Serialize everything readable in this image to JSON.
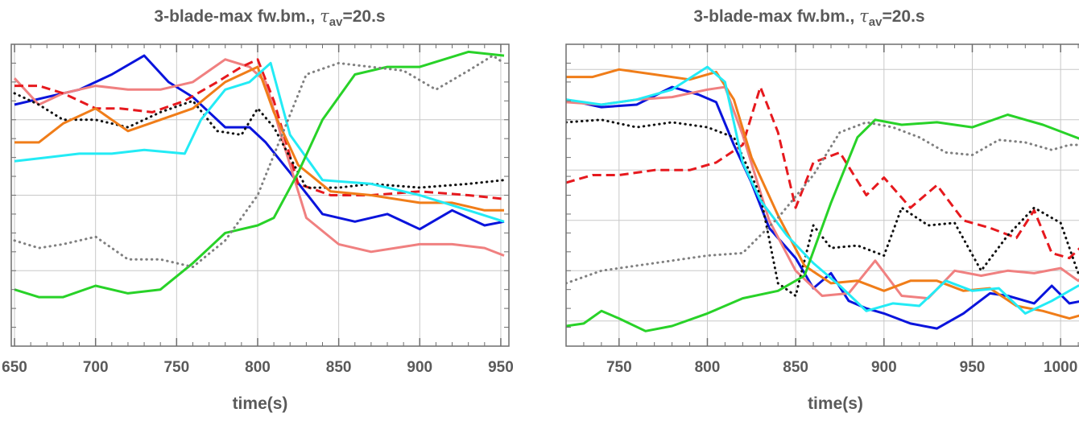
{
  "colors": {
    "blue": "#0a14dc",
    "pink": "#f08080",
    "red": "#e6191e",
    "black": "#111111",
    "orange": "#f07d19",
    "cyan": "#23ebf5",
    "green": "#28d228",
    "gray": "#808080",
    "grid": "#c8c8c8",
    "frame": "#6e6e6e",
    "text": "#5a5a5a"
  },
  "chart_data": [
    {
      "type": "line",
      "title_prefix": "3-blade-max fw.bm., ",
      "title_symbol": "τ",
      "title_sub": "av",
      "title_suffix": "=20.s",
      "xlabel": "time(s)",
      "ylabel": "",
      "xlim": [
        648,
        955
      ],
      "ylim": [
        0,
        8
      ],
      "xticks": [
        650,
        700,
        750,
        800,
        850,
        900,
        950
      ],
      "xtick_labels": [
        "650",
        "700",
        "750",
        "800",
        "850",
        "900",
        "950"
      ],
      "ygrid": [
        2,
        4,
        6,
        8
      ],
      "grid": true,
      "series": [
        {
          "color": "blue",
          "style": "solid",
          "x": [
            650,
            670,
            690,
            710,
            730,
            745,
            760,
            780,
            795,
            805,
            820,
            840,
            860,
            880,
            900,
            920,
            940,
            952
          ],
          "y": [
            6.4,
            6.6,
            6.8,
            7.2,
            7.7,
            7.0,
            6.6,
            5.8,
            5.8,
            5.4,
            4.6,
            3.5,
            3.3,
            3.5,
            3.1,
            3.6,
            3.2,
            3.3
          ]
        },
        {
          "color": "pink",
          "style": "solid",
          "x": [
            650,
            665,
            680,
            700,
            720,
            740,
            760,
            780,
            795,
            805,
            815,
            830,
            850,
            870,
            900,
            920,
            940,
            952
          ],
          "y": [
            7.1,
            6.4,
            6.7,
            6.9,
            6.8,
            6.8,
            7.0,
            7.6,
            7.4,
            7.0,
            5.5,
            3.4,
            2.7,
            2.5,
            2.7,
            2.7,
            2.6,
            2.4
          ]
        },
        {
          "color": "red",
          "style": "dash",
          "x": [
            650,
            665,
            680,
            700,
            715,
            735,
            755,
            775,
            790,
            800,
            810,
            825,
            845,
            870,
            900,
            930,
            952
          ],
          "y": [
            6.9,
            6.9,
            6.7,
            6.3,
            6.3,
            6.2,
            6.5,
            7.0,
            7.4,
            7.6,
            6.5,
            4.3,
            4.0,
            4.0,
            4.1,
            4.0,
            3.9
          ]
        },
        {
          "color": "black",
          "style": "dot",
          "x": [
            650,
            665,
            680,
            700,
            720,
            740,
            760,
            775,
            790,
            800,
            810,
            830,
            850,
            870,
            900,
            930,
            952
          ],
          "y": [
            6.7,
            6.4,
            6.0,
            6.0,
            5.8,
            6.2,
            6.5,
            5.7,
            5.6,
            6.3,
            5.8,
            4.2,
            4.2,
            4.3,
            4.2,
            4.3,
            4.4
          ]
        },
        {
          "color": "orange",
          "style": "solid",
          "x": [
            650,
            665,
            680,
            700,
            720,
            740,
            760,
            780,
            800,
            810,
            825,
            845,
            870,
            900,
            920,
            940,
            952
          ],
          "y": [
            5.4,
            5.4,
            5.9,
            6.3,
            5.7,
            6.0,
            6.3,
            7.0,
            7.4,
            6.2,
            4.8,
            4.1,
            4.0,
            3.8,
            3.8,
            3.6,
            3.6
          ]
        },
        {
          "color": "cyan",
          "style": "solid",
          "x": [
            650,
            670,
            690,
            710,
            730,
            755,
            765,
            780,
            795,
            808,
            820,
            840,
            870,
            900,
            930,
            952
          ],
          "y": [
            4.9,
            5.0,
            5.1,
            5.1,
            5.2,
            5.1,
            6.0,
            6.8,
            7.0,
            7.5,
            5.6,
            4.4,
            4.3,
            4.0,
            3.6,
            3.3
          ]
        },
        {
          "color": "green",
          "style": "solid",
          "x": [
            650,
            665,
            680,
            700,
            720,
            740,
            760,
            780,
            800,
            810,
            825,
            840,
            860,
            880,
            900,
            930,
            952
          ],
          "y": [
            1.5,
            1.3,
            1.3,
            1.6,
            1.4,
            1.5,
            2.2,
            3.0,
            3.2,
            3.4,
            4.6,
            6.0,
            7.2,
            7.4,
            7.4,
            7.8,
            7.7
          ]
        },
        {
          "color": "gray",
          "style": "dot",
          "x": [
            650,
            665,
            680,
            700,
            720,
            740,
            760,
            780,
            800,
            815,
            830,
            850,
            870,
            890,
            910,
            930,
            945,
            952
          ],
          "y": [
            2.8,
            2.6,
            2.7,
            2.9,
            2.3,
            2.3,
            2.1,
            2.8,
            4.0,
            5.6,
            7.2,
            7.5,
            7.4,
            7.3,
            6.8,
            7.3,
            7.7,
            7.5
          ]
        }
      ]
    },
    {
      "type": "line",
      "title_prefix": "3-blade-max fw.bm., ",
      "title_symbol": "τ",
      "title_sub": "av",
      "title_suffix": "=20.s",
      "xlabel": "time(s)",
      "ylabel": "",
      "xlim": [
        720,
        1025
      ],
      "ylim": [
        0,
        12
      ],
      "xticks": [
        750,
        800,
        850,
        900,
        950,
        1000
      ],
      "xtick_labels": [
        "750",
        "800",
        "850",
        "900",
        "950",
        "1000"
      ],
      "ygrid": [
        1,
        3,
        5,
        7,
        9,
        11
      ],
      "grid": true,
      "series": [
        {
          "color": "blue",
          "style": "solid",
          "x": [
            720,
            740,
            760,
            780,
            795,
            805,
            815,
            825,
            835,
            850,
            860,
            870,
            880,
            890,
            900,
            915,
            930,
            945,
            960,
            970,
            985,
            995,
            1005,
            1020
          ],
          "y": [
            9.8,
            9.5,
            9.6,
            10.3,
            10.0,
            9.7,
            8.0,
            6.5,
            4.7,
            3.5,
            2.3,
            2.9,
            1.8,
            1.5,
            1.3,
            0.9,
            0.7,
            1.3,
            2.1,
            2.0,
            1.7,
            2.4,
            1.7,
            1.9
          ]
        },
        {
          "color": "pink",
          "style": "solid",
          "x": [
            720,
            740,
            760,
            780,
            800,
            810,
            820,
            835,
            850,
            865,
            880,
            895,
            910,
            925,
            940,
            955,
            970,
            985,
            1000,
            1010,
            1020
          ],
          "y": [
            9.7,
            9.6,
            9.8,
            9.9,
            10.2,
            10.3,
            8.4,
            5.0,
            3.0,
            2.0,
            2.1,
            3.4,
            2.0,
            1.9,
            3.0,
            2.8,
            3.0,
            2.9,
            3.1,
            2.6,
            3.3
          ]
        },
        {
          "color": "red",
          "style": "dash",
          "x": [
            720,
            735,
            750,
            770,
            790,
            805,
            820,
            830,
            840,
            850,
            860,
            875,
            890,
            900,
            915,
            930,
            945,
            960,
            975,
            985,
            995,
            1005,
            1020
          ],
          "y": [
            6.5,
            6.8,
            6.8,
            7.0,
            7.0,
            7.3,
            8.0,
            10.3,
            8.5,
            5.5,
            7.3,
            7.7,
            6.0,
            6.7,
            5.5,
            6.4,
            5.0,
            4.7,
            4.3,
            5.4,
            3.7,
            3.5,
            4.5
          ]
        },
        {
          "color": "black",
          "style": "dot",
          "x": [
            720,
            740,
            760,
            780,
            800,
            815,
            830,
            840,
            850,
            860,
            870,
            885,
            900,
            910,
            925,
            940,
            955,
            970,
            985,
            1000,
            1010,
            1020
          ],
          "y": [
            8.9,
            9.0,
            8.7,
            8.9,
            8.7,
            8.3,
            6.0,
            2.5,
            2.0,
            4.8,
            3.9,
            4.0,
            3.6,
            5.5,
            4.8,
            4.9,
            3.0,
            4.4,
            5.5,
            4.9,
            2.9,
            4.0
          ]
        },
        {
          "color": "orange",
          "style": "solid",
          "x": [
            720,
            735,
            750,
            770,
            790,
            805,
            815,
            825,
            840,
            855,
            870,
            885,
            900,
            915,
            930,
            945,
            960,
            975,
            990,
            1005,
            1020
          ],
          "y": [
            10.7,
            10.7,
            11.0,
            10.8,
            10.6,
            10.9,
            9.8,
            7.5,
            5.2,
            3.2,
            2.5,
            2.6,
            2.2,
            2.6,
            2.6,
            2.2,
            2.3,
            1.6,
            1.4,
            1.1,
            1.4
          ]
        },
        {
          "color": "cyan",
          "style": "solid",
          "x": [
            720,
            740,
            760,
            780,
            800,
            810,
            820,
            830,
            845,
            860,
            875,
            890,
            905,
            920,
            935,
            950,
            965,
            980,
            995,
            1010,
            1020
          ],
          "y": [
            9.8,
            9.6,
            9.8,
            10.2,
            11.1,
            10.5,
            7.3,
            5.8,
            4.4,
            3.3,
            2.4,
            1.4,
            1.7,
            1.6,
            2.6,
            2.2,
            2.3,
            1.3,
            1.8,
            2.4,
            2.4
          ]
        },
        {
          "color": "green",
          "style": "solid",
          "x": [
            720,
            730,
            740,
            750,
            765,
            780,
            800,
            820,
            840,
            855,
            870,
            885,
            895,
            910,
            930,
            950,
            970,
            990,
            1005,
            1020
          ],
          "y": [
            0.8,
            0.9,
            1.4,
            1.1,
            0.6,
            0.8,
            1.3,
            1.9,
            2.2,
            2.8,
            5.7,
            8.3,
            9.0,
            8.8,
            8.9,
            8.7,
            9.2,
            8.8,
            8.4,
            8.0
          ]
        },
        {
          "color": "gray",
          "style": "dot",
          "x": [
            720,
            740,
            760,
            780,
            800,
            820,
            840,
            860,
            875,
            890,
            905,
            920,
            935,
            950,
            965,
            980,
            995,
            1005,
            1020
          ],
          "y": [
            2.5,
            3.0,
            3.2,
            3.4,
            3.6,
            3.7,
            5.1,
            6.8,
            8.5,
            8.9,
            8.7,
            8.3,
            7.7,
            7.6,
            8.2,
            8.1,
            7.8,
            8.0,
            8.0
          ]
        }
      ]
    }
  ]
}
